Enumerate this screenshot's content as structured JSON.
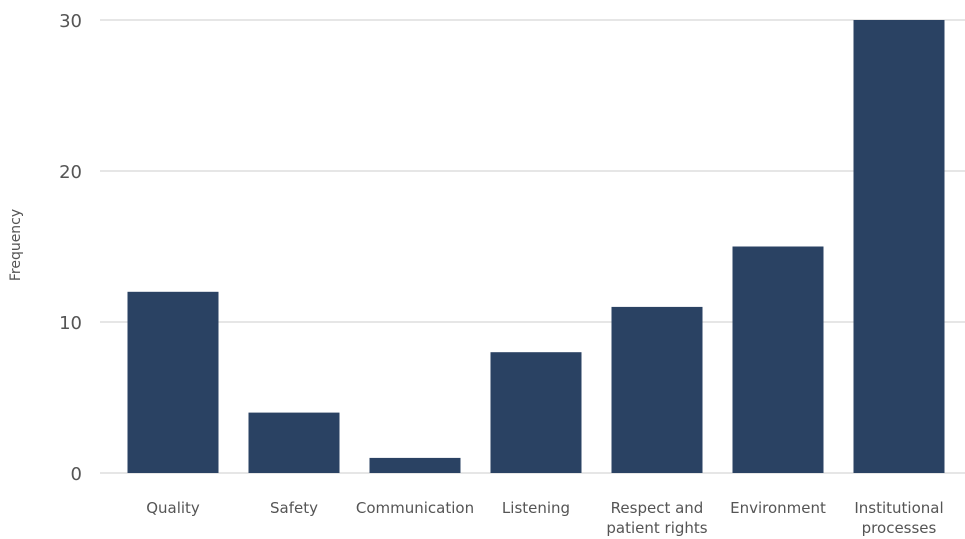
{
  "chart_data": {
    "type": "bar",
    "title": "",
    "xlabel": "",
    "ylabel": "Frequency",
    "categories": [
      [
        "Quality"
      ],
      [
        "Safety"
      ],
      [
        "Communication"
      ],
      [
        "Listening"
      ],
      [
        "Respect and",
        "patient rights"
      ],
      [
        "Environment"
      ],
      [
        "Institutional",
        "processes"
      ]
    ],
    "values": [
      12,
      4,
      1,
      8,
      11,
      15,
      30
    ],
    "ylim": [
      0,
      30
    ],
    "yticks": [
      0,
      10,
      20,
      30
    ],
    "grid": true,
    "legend": "none",
    "colors": {
      "bar": "#2a4263",
      "grid": "#cccccc",
      "text": "#555555"
    }
  }
}
